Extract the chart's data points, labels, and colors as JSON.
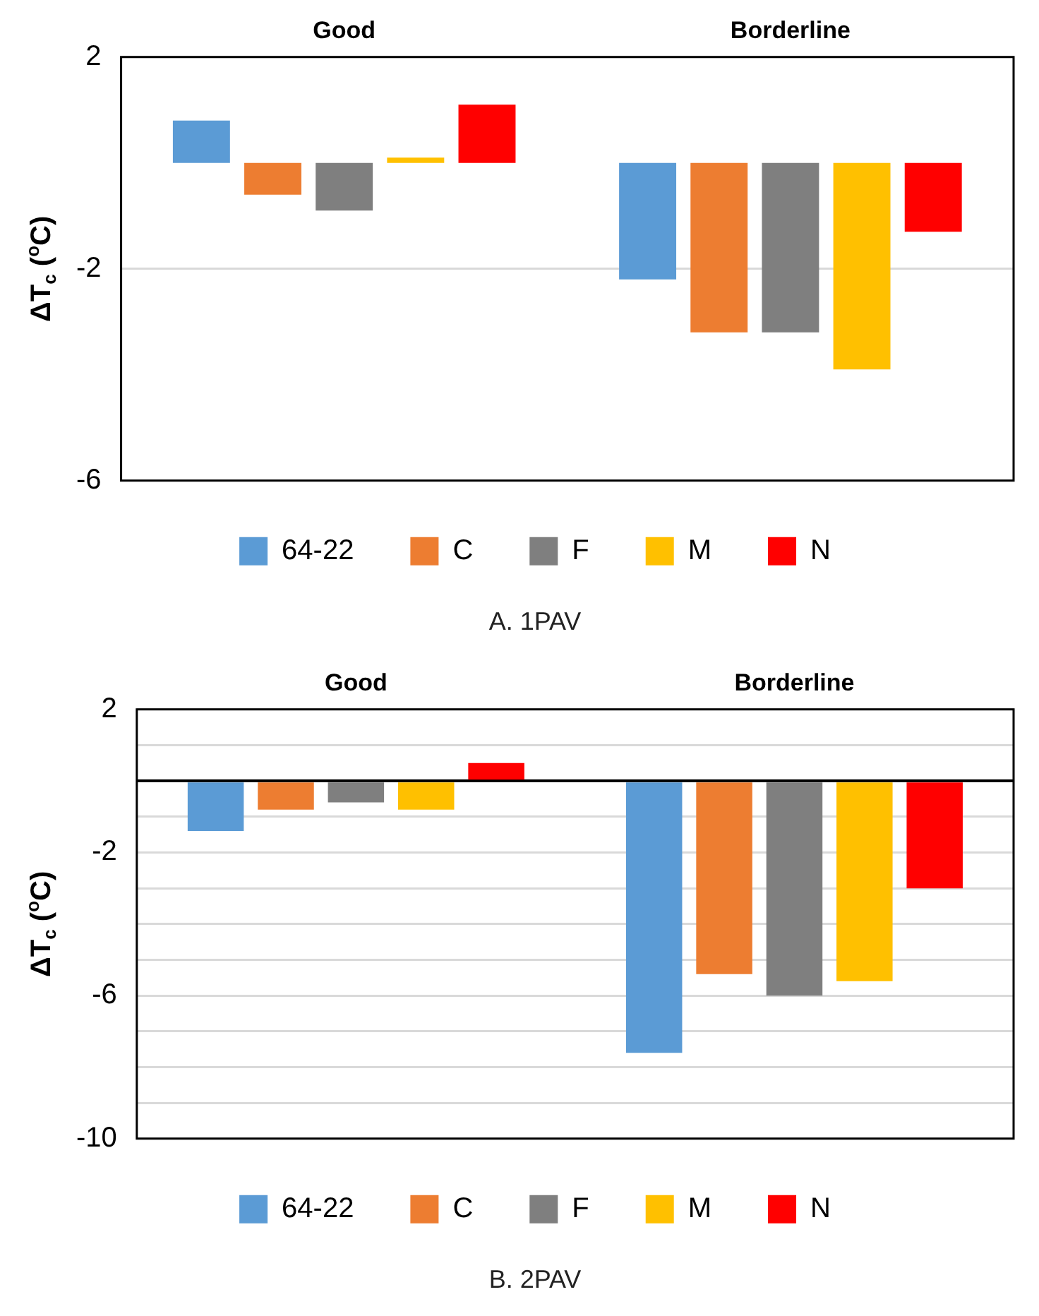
{
  "chart_data": [
    {
      "type": "bar",
      "title": "A. 1PAV",
      "ylabel": "ΔT$_{c}$ ($^{o}$C)",
      "categories": [
        "Good",
        "Borderline"
      ],
      "series": [
        {
          "name": "64-22",
          "color": "#5b9bd5",
          "values": [
            0.8,
            -2.2
          ]
        },
        {
          "name": "C",
          "color": "#ed7d31",
          "values": [
            -0.6,
            -3.2
          ]
        },
        {
          "name": "F",
          "color": "#7f7f7f",
          "values": [
            -0.9,
            -3.2
          ]
        },
        {
          "name": "M",
          "color": "#ffc000",
          "values": [
            0.1,
            -3.9
          ]
        },
        {
          "name": "N",
          "color": "#ff0000",
          "values": [
            1.1,
            -1.3
          ]
        }
      ],
      "ylim": [
        -6,
        2
      ],
      "yticks": [
        -6,
        -2,
        2
      ],
      "grid": "y",
      "legend": "bottom"
    },
    {
      "type": "bar",
      "title": "B. 2PAV",
      "ylabel": "ΔT$_{c}$ ($^{o}$C)",
      "categories": [
        "Good",
        "Borderline"
      ],
      "series": [
        {
          "name": "64-22",
          "color": "#5b9bd5",
          "values": [
            -1.4,
            -7.6
          ]
        },
        {
          "name": "C",
          "color": "#ed7d31",
          "values": [
            -0.8,
            -5.4
          ]
        },
        {
          "name": "F",
          "color": "#7f7f7f",
          "values": [
            -0.6,
            -6.0
          ]
        },
        {
          "name": "M",
          "color": "#ffc000",
          "values": [
            -0.8,
            -5.6
          ]
        },
        {
          "name": "N",
          "color": "#ff0000",
          "values": [
            0.5,
            -3.0
          ]
        }
      ],
      "ylim": [
        -10,
        2
      ],
      "yticks": [
        -10,
        {
          "value": -9,
          "label": null
        },
        {
          "value": -8,
          "label": null
        },
        {
          "value": -7,
          "label": null
        },
        -6,
        {
          "value": -5,
          "label": null
        },
        {
          "value": -4,
          "label": null
        },
        {
          "value": -3,
          "label": null
        },
        -2,
        {
          "value": -1,
          "label": null
        },
        {
          "value": 0,
          "label": null
        },
        {
          "value": 1,
          "label": null
        },
        2
      ],
      "grid": "y",
      "legend": "bottom"
    }
  ]
}
